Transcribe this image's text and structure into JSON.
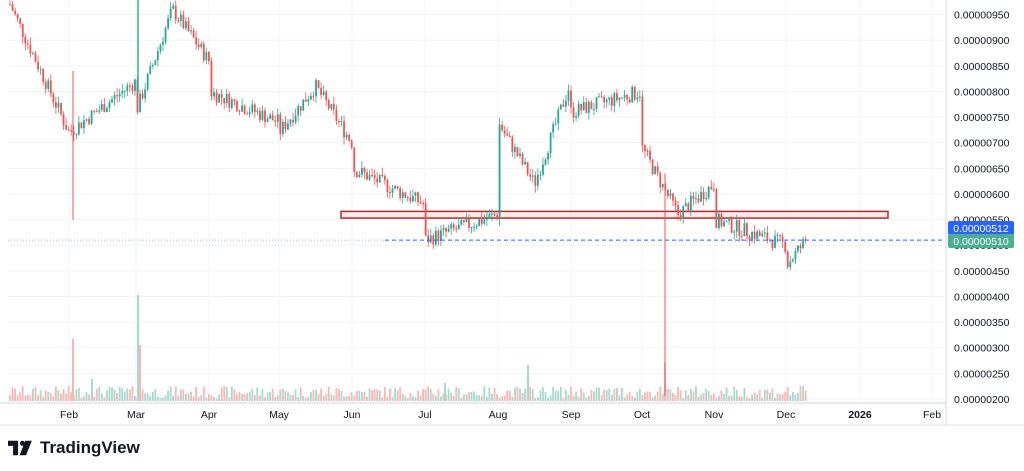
{
  "brand": {
    "name": "TradingView"
  },
  "chart_data": {
    "type": "candlestick",
    "grid": true,
    "price_axis": {
      "position": "right",
      "ticks": [
        "0.00000950",
        "0.00000900",
        "0.00000850",
        "0.00000800",
        "0.00000750",
        "0.00000700",
        "0.00000650",
        "0.00000600",
        "0.00000550",
        "0.00000500",
        "0.00000450",
        "0.00000400",
        "0.00000350",
        "0.00000300",
        "0.00000250",
        "0.00000200"
      ]
    },
    "time_axis": {
      "ticks": [
        "Feb",
        "Mar",
        "Apr",
        "May",
        "Jun",
        "Jul",
        "Aug",
        "Sep",
        "Oct",
        "Nov",
        "Dec",
        "2026",
        "Feb"
      ]
    },
    "price_labels": [
      {
        "value": "0.00000512",
        "color": "#2962ff"
      },
      {
        "value": "0.00000510",
        "color": "#4caf93"
      }
    ],
    "horizontal_line": {
      "value": 5.1e-06,
      "style": "dashed",
      "color": "#2962ff"
    },
    "zone": {
      "from": "Jun",
      "to": "Dec",
      "low": 5.53e-06,
      "high": 5.66e-06,
      "border_color": "#b22b2b",
      "fill": "rgba(242,54,69,0.10)"
    },
    "colors": {
      "up": "#26a69a",
      "down": "#ef5350",
      "up_volume": "#a8d9cf",
      "down_volume": "#f7b7b3"
    },
    "price_path": [
      [
        "Jan",
        9.7e-06
      ],
      [
        "Feb",
        7.2e-06
      ],
      [
        "Feb",
        8.2e-06
      ],
      [
        "Mar",
        7.6e-06
      ],
      [
        "Mar",
        9.6e-06
      ],
      [
        "Mar",
        8.6e-06
      ],
      [
        "Apr",
        8e-06
      ],
      [
        "Apr",
        7.4e-06
      ],
      [
        "May",
        7.2e-06
      ],
      [
        "May",
        8.1e-06
      ],
      [
        "May",
        7e-06
      ],
      [
        "Jun",
        6.5e-06
      ],
      [
        "Jun",
        5.8e-06
      ],
      [
        "Jul",
        5.1e-06
      ],
      [
        "Jul",
        5.6e-06
      ],
      [
        "Aug",
        7.4e-06
      ],
      [
        "Aug",
        6.2e-06
      ],
      [
        "Aug",
        8.2e-06
      ],
      [
        "Sep",
        7.6e-06
      ],
      [
        "Sep",
        8e-06
      ],
      [
        "Oct",
        6.9e-06
      ],
      [
        "Oct",
        5.6e-06
      ],
      [
        "Oct",
        6.2e-06
      ],
      [
        "Nov",
        5.5e-06
      ],
      [
        "Nov",
        5e-06
      ],
      [
        "Dec",
        4.6e-06
      ],
      [
        "Dec",
        5.1e-06
      ]
    ],
    "volume_spikes": [
      "Feb",
      "Mar",
      "Aug",
      "Oct"
    ]
  }
}
